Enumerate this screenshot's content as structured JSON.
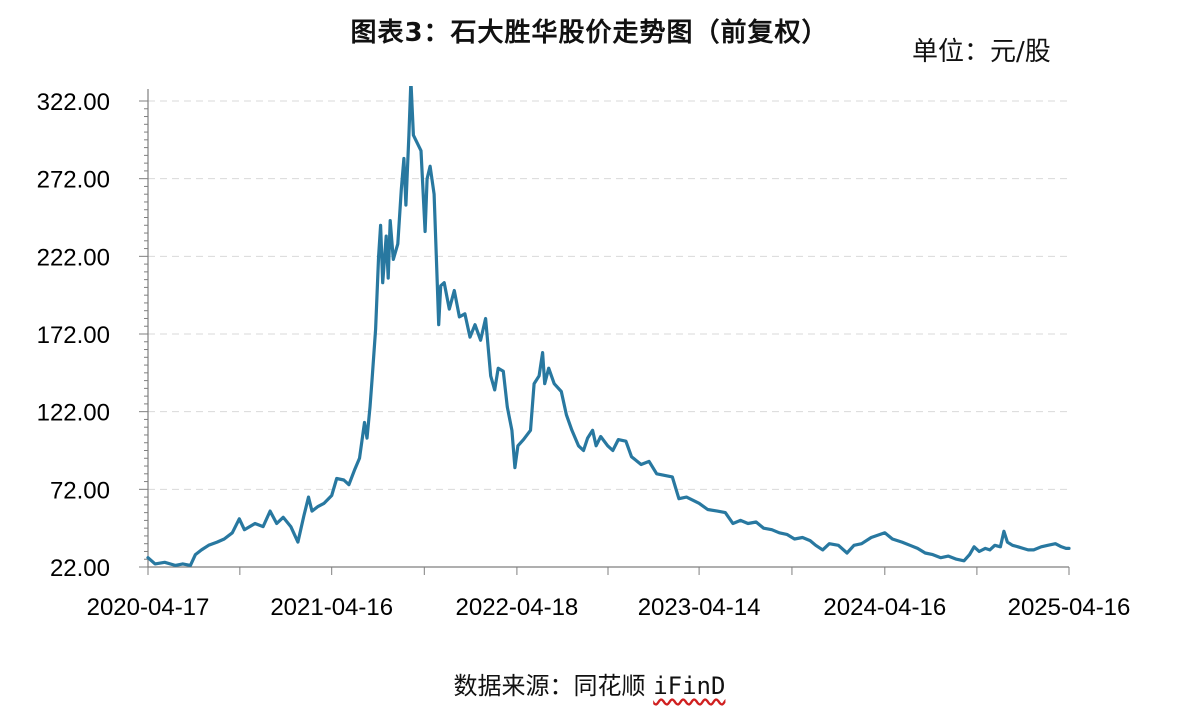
{
  "header": {
    "title": "图表3：石大胜华股价走势图（前复权）",
    "unit": "单位：元/股"
  },
  "footer": {
    "source_prefix": "数据来源：同花顺 ",
    "source_brand": "iFinD"
  },
  "colors": {
    "line": "#2878A0",
    "grid": "#D9D9D9",
    "axis": "#7F7F7F"
  },
  "chart_data": {
    "type": "line",
    "title": "图表3：石大胜华股价走势图（前复权）",
    "ylabel": "",
    "xlabel": "",
    "ylim": [
      22.0,
      322.0
    ],
    "yticks": [
      22.0,
      72.0,
      122.0,
      172.0,
      222.0,
      272.0,
      322.0
    ],
    "ytick_labels": [
      "22.00",
      "72.00",
      "122.00",
      "172.00",
      "222.00",
      "272.00",
      "322.00"
    ],
    "xlim": [
      "2020-04-17",
      "2025-04-16"
    ],
    "xtick_labels": [
      "2020-04-17",
      "2021-04-16",
      "2022-04-18",
      "2023-04-14",
      "2024-04-16",
      "2025-04-16"
    ],
    "grid": true,
    "series": [
      {
        "values": [
          [
            "2020-04-17",
            28
          ],
          [
            "2020-05-01",
            24
          ],
          [
            "2020-05-20",
            25
          ],
          [
            "2020-06-10",
            23
          ],
          [
            "2020-06-25",
            24
          ],
          [
            "2020-07-10",
            23
          ],
          [
            "2020-07-20",
            30
          ],
          [
            "2020-08-01",
            33
          ],
          [
            "2020-08-15",
            36
          ],
          [
            "2020-09-01",
            38
          ],
          [
            "2020-09-15",
            40
          ],
          [
            "2020-10-01",
            44
          ],
          [
            "2020-10-15",
            53
          ],
          [
            "2020-10-25",
            46
          ],
          [
            "2020-11-15",
            50
          ],
          [
            "2020-12-01",
            48
          ],
          [
            "2020-12-15",
            58
          ],
          [
            "2020-12-28",
            50
          ],
          [
            "2021-01-10",
            54
          ],
          [
            "2021-01-25",
            48
          ],
          [
            "2021-02-08",
            38
          ],
          [
            "2021-02-20",
            55
          ],
          [
            "2021-03-01",
            67
          ],
          [
            "2021-03-08",
            58
          ],
          [
            "2021-03-20",
            61
          ],
          [
            "2021-04-01",
            63
          ],
          [
            "2021-04-16",
            68
          ],
          [
            "2021-04-26",
            79
          ],
          [
            "2021-05-10",
            78
          ],
          [
            "2021-05-20",
            75
          ],
          [
            "2021-06-01",
            85
          ],
          [
            "2021-06-10",
            92
          ],
          [
            "2021-06-20",
            115
          ],
          [
            "2021-06-25",
            105
          ],
          [
            "2021-07-01",
            125
          ],
          [
            "2021-07-05",
            143
          ],
          [
            "2021-07-12",
            175
          ],
          [
            "2021-07-18",
            222
          ],
          [
            "2021-07-22",
            242
          ],
          [
            "2021-07-26",
            205
          ],
          [
            "2021-08-02",
            235
          ],
          [
            "2021-08-06",
            208
          ],
          [
            "2021-08-10",
            245
          ],
          [
            "2021-08-16",
            220
          ],
          [
            "2021-08-25",
            230
          ],
          [
            "2021-09-01",
            265
          ],
          [
            "2021-09-06",
            285
          ],
          [
            "2021-09-10",
            255
          ],
          [
            "2021-09-16",
            300
          ],
          [
            "2021-09-20",
            335
          ],
          [
            "2021-09-25",
            300
          ],
          [
            "2021-10-10",
            290
          ],
          [
            "2021-10-18",
            238
          ],
          [
            "2021-10-22",
            272
          ],
          [
            "2021-10-28",
            280
          ],
          [
            "2021-11-05",
            262
          ],
          [
            "2021-11-10",
            215
          ],
          [
            "2021-11-14",
            178
          ],
          [
            "2021-11-18",
            203
          ],
          [
            "2021-11-25",
            205
          ],
          [
            "2021-12-05",
            188
          ],
          [
            "2021-12-15",
            200
          ],
          [
            "2021-12-25",
            183
          ],
          [
            "2022-01-05",
            185
          ],
          [
            "2022-01-15",
            170
          ],
          [
            "2022-01-25",
            178
          ],
          [
            "2022-02-05",
            168
          ],
          [
            "2022-02-15",
            182
          ],
          [
            "2022-02-25",
            145
          ],
          [
            "2022-03-05",
            136
          ],
          [
            "2022-03-12",
            150
          ],
          [
            "2022-03-22",
            148
          ],
          [
            "2022-03-30",
            125
          ],
          [
            "2022-04-08",
            110
          ],
          [
            "2022-04-14",
            86
          ],
          [
            "2022-04-20",
            100
          ],
          [
            "2022-05-01",
            104
          ],
          [
            "2022-05-15",
            110
          ],
          [
            "2022-05-22",
            140
          ],
          [
            "2022-06-01",
            145
          ],
          [
            "2022-06-08",
            160
          ],
          [
            "2022-06-12",
            140
          ],
          [
            "2022-06-20",
            150
          ],
          [
            "2022-07-01",
            140
          ],
          [
            "2022-07-15",
            135
          ],
          [
            "2022-07-25",
            120
          ],
          [
            "2022-08-05",
            110
          ],
          [
            "2022-08-18",
            100
          ],
          [
            "2022-08-28",
            97
          ],
          [
            "2022-09-05",
            105
          ],
          [
            "2022-09-15",
            110
          ],
          [
            "2022-09-22",
            100
          ],
          [
            "2022-10-01",
            106
          ],
          [
            "2022-10-15",
            100
          ],
          [
            "2022-10-25",
            97
          ],
          [
            "2022-11-05",
            104
          ],
          [
            "2022-11-20",
            103
          ],
          [
            "2022-12-01",
            93
          ],
          [
            "2022-12-20",
            88
          ],
          [
            "2023-01-05",
            90
          ],
          [
            "2023-01-20",
            82
          ],
          [
            "2023-02-05",
            81
          ],
          [
            "2023-02-20",
            80
          ],
          [
            "2023-03-05",
            66
          ],
          [
            "2023-03-20",
            67
          ],
          [
            "2023-04-14",
            63
          ],
          [
            "2023-05-01",
            59
          ],
          [
            "2023-05-20",
            58
          ],
          [
            "2023-06-05",
            57
          ],
          [
            "2023-06-20",
            50
          ],
          [
            "2023-07-05",
            52
          ],
          [
            "2023-07-20",
            50
          ],
          [
            "2023-08-05",
            51
          ],
          [
            "2023-08-20",
            47
          ],
          [
            "2023-09-05",
            46
          ],
          [
            "2023-09-20",
            44
          ],
          [
            "2023-10-05",
            43
          ],
          [
            "2023-10-20",
            40
          ],
          [
            "2023-11-05",
            41
          ],
          [
            "2023-11-20",
            39
          ],
          [
            "2023-12-01",
            36
          ],
          [
            "2023-12-15",
            33
          ],
          [
            "2023-12-28",
            37
          ],
          [
            "2024-01-15",
            36
          ],
          [
            "2024-02-01",
            31
          ],
          [
            "2024-02-15",
            36
          ],
          [
            "2024-03-01",
            37
          ],
          [
            "2024-03-20",
            41
          ],
          [
            "2024-04-16",
            44
          ],
          [
            "2024-05-01",
            40
          ],
          [
            "2024-05-20",
            38
          ],
          [
            "2024-06-05",
            36
          ],
          [
            "2024-06-20",
            34
          ],
          [
            "2024-07-05",
            31
          ],
          [
            "2024-07-20",
            30
          ],
          [
            "2024-08-05",
            28
          ],
          [
            "2024-08-20",
            29
          ],
          [
            "2024-09-05",
            27
          ],
          [
            "2024-09-20",
            26
          ],
          [
            "2024-10-01",
            30
          ],
          [
            "2024-10-10",
            35
          ],
          [
            "2024-10-20",
            32
          ],
          [
            "2024-11-01",
            34
          ],
          [
            "2024-11-10",
            33
          ],
          [
            "2024-11-20",
            36
          ],
          [
            "2024-12-01",
            35
          ],
          [
            "2024-12-08",
            45
          ],
          [
            "2024-12-15",
            38
          ],
          [
            "2024-12-25",
            36
          ],
          [
            "2025-01-05",
            35
          ],
          [
            "2025-01-15",
            34
          ],
          [
            "2025-01-25",
            33
          ],
          [
            "2025-02-05",
            33
          ],
          [
            "2025-02-20",
            35
          ],
          [
            "2025-03-05",
            36
          ],
          [
            "2025-03-20",
            37
          ],
          [
            "2025-04-01",
            35
          ],
          [
            "2025-04-10",
            34
          ],
          [
            "2025-04-16",
            34
          ]
        ]
      }
    ]
  }
}
